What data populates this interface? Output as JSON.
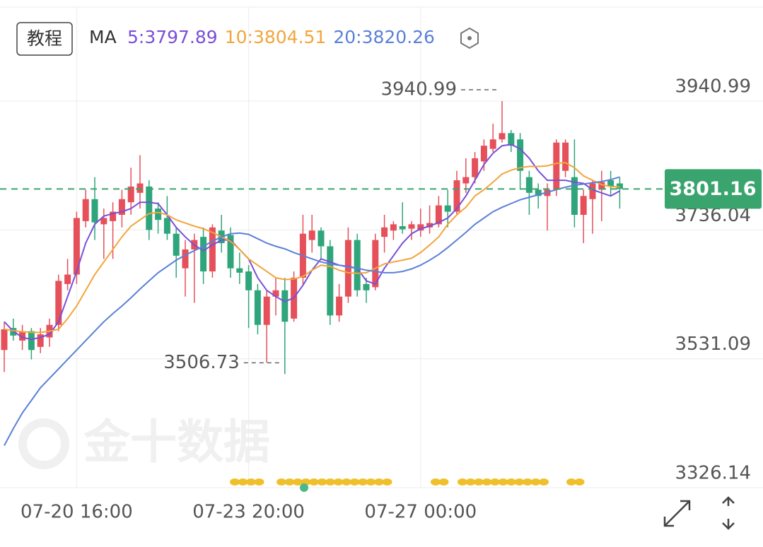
{
  "tutorial_button": "教程",
  "watermark": "金十数据",
  "chart_data": {
    "type": "candlestick",
    "ma_title": "MA",
    "categories": [
      null,
      null,
      null,
      null,
      null,
      null,
      null,
      null,
      "07-20 16:00",
      null,
      null,
      null,
      null,
      null,
      null,
      null,
      null,
      null,
      null,
      null,
      null,
      null,
      null,
      null,
      null,
      null,
      null,
      "07-23 20:00",
      null,
      null,
      null,
      null,
      null,
      null,
      null,
      null,
      null,
      null,
      null,
      null,
      null,
      null,
      null,
      null,
      null,
      null,
      "07-27 00:00",
      null,
      null,
      null,
      null,
      null,
      null,
      null,
      null,
      null,
      null,
      null,
      null,
      null,
      null,
      null,
      null,
      null,
      null,
      null,
      null,
      null,
      null
    ],
    "open": [
      3545,
      3580,
      3560,
      3575,
      3550,
      3565,
      3585,
      3650,
      3665,
      3750,
      3785,
      3745,
      3750,
      3760,
      3780,
      3795,
      3805,
      3770,
      3755,
      3730,
      3675,
      3705,
      3725,
      3670,
      3735,
      3728,
      3675,
      3670,
      3640,
      3585,
      3630,
      3640,
      3595,
      3660,
      3720,
      3735,
      3710,
      3600,
      3630,
      3720,
      3650,
      3645,
      3725,
      3735,
      3742,
      3738,
      3735,
      3740,
      3745,
      3775,
      3765,
      3810,
      3820,
      3845,
      3865,
      3880,
      3890,
      3880,
      3820,
      3800,
      3790,
      3800,
      3830,
      3820,
      3760,
      3785,
      3800,
      3815,
      3810
    ],
    "high": [
      3590,
      3595,
      3585,
      3580,
      3580,
      3595,
      3665,
      3690,
      3765,
      3800,
      3820,
      3770,
      3780,
      3800,
      3835,
      3855,
      3815,
      3780,
      3790,
      3740,
      3720,
      3730,
      3740,
      3745,
      3760,
      3740,
      3700,
      3680,
      3650,
      3640,
      3660,
      3660,
      3670,
      3760,
      3760,
      3740,
      3720,
      3650,
      3740,
      3730,
      3660,
      3730,
      3760,
      3750,
      3780,
      3750,
      3770,
      3775,
      3790,
      3800,
      3830,
      3850,
      3860,
      3880,
      3905,
      3940.99,
      3895,
      3890,
      3830,
      3810,
      3810,
      3880,
      3880,
      3880,
      3800,
      3815,
      3830,
      3830,
      3820
    ],
    "low": [
      3510,
      3560,
      3545,
      3530,
      3540,
      3550,
      3575,
      3640,
      3650,
      3740,
      3720,
      3690,
      3690,
      3740,
      3760,
      3770,
      3720,
      3730,
      3720,
      3660,
      3630,
      3620,
      3650,
      3660,
      3700,
      3660,
      3650,
      3580,
      3570,
      3525,
      3600,
      3506.73,
      3590,
      3650,
      3700,
      3690,
      3585,
      3590,
      3620,
      3630,
      3620,
      3640,
      3700,
      3720,
      3730,
      3720,
      3725,
      3730,
      3740,
      3740,
      3760,
      3795,
      3810,
      3830,
      3860,
      3875,
      3860,
      3800,
      3760,
      3770,
      3735,
      3790,
      3820,
      3740,
      3715,
      3730,
      3750,
      3790,
      3770
    ],
    "close": [
      3578,
      3568,
      3575,
      3545,
      3570,
      3585,
      3655,
      3665,
      3755,
      3785,
      3748,
      3755,
      3765,
      3785,
      3805,
      3810,
      3736,
      3752,
      3730,
      3695,
      3705,
      3720,
      3670,
      3740,
      3715,
      3675,
      3668,
      3640,
      3585,
      3630,
      3640,
      3590,
      3660,
      3730,
      3735,
      3710,
      3600,
      3630,
      3720,
      3640,
      3640,
      3720,
      3740,
      3745,
      3737,
      3745,
      3745,
      3747,
      3775,
      3765,
      3815,
      3820,
      3850,
      3870,
      3880,
      3890,
      3870,
      3830,
      3795,
      3790,
      3800,
      3875,
      3875,
      3760,
      3790,
      3810,
      3812,
      3805,
      3801.16
    ],
    "up_color": "#e5505a",
    "down_color": "#2fa57b",
    "series": [
      {
        "name": "5:3797.89",
        "color": "#7a4fd8",
        "values": [
          3590,
          3575,
          3565,
          3562,
          3565,
          3570,
          3590,
          3630,
          3670,
          3715,
          3745,
          3758,
          3762,
          3765,
          3770,
          3780,
          3780,
          3778,
          3760,
          3740,
          3725,
          3712,
          3703,
          3712,
          3720,
          3720,
          3705,
          3690,
          3660,
          3640,
          3630,
          3622,
          3628,
          3648,
          3672,
          3690,
          3685,
          3680,
          3678,
          3675,
          3655,
          3650,
          3675,
          3695,
          3715,
          3730,
          3738,
          3742,
          3748,
          3755,
          3770,
          3790,
          3815,
          3840,
          3858,
          3870,
          3872,
          3865,
          3850,
          3830,
          3815,
          3815,
          3815,
          3812,
          3810,
          3800,
          3795,
          3790,
          3797.89
        ]
      },
      {
        "name": "10:3804.51",
        "color": "#f2a53c",
        "values": [
          3578,
          3576,
          3574,
          3573,
          3573,
          3575,
          3578,
          3595,
          3615,
          3640,
          3665,
          3685,
          3705,
          3725,
          3742,
          3752,
          3762,
          3764,
          3760,
          3752,
          3747,
          3742,
          3738,
          3732,
          3725,
          3718,
          3705,
          3690,
          3680,
          3670,
          3660,
          3657,
          3658,
          3662,
          3672,
          3680,
          3678,
          3672,
          3668,
          3667,
          3668,
          3675,
          3682,
          3685,
          3688,
          3691,
          3700,
          3712,
          3725,
          3745,
          3760,
          3772,
          3790,
          3800,
          3812,
          3825,
          3831,
          3835,
          3837,
          3837,
          3838,
          3842,
          3843,
          3835,
          3822,
          3815,
          3808,
          3805,
          3804.51
        ]
      },
      {
        "name": "20:3820.26",
        "color": "#5b80d8",
        "values": [
          3393,
          3420,
          3445,
          3465,
          3485,
          3500,
          3515,
          3530,
          3545,
          3560,
          3575,
          3590,
          3603,
          3615,
          3628,
          3642,
          3655,
          3668,
          3678,
          3688,
          3696,
          3703,
          3710,
          3718,
          3725,
          3730,
          3731,
          3729,
          3722,
          3715,
          3710,
          3706,
          3700,
          3695,
          3690,
          3685,
          3682,
          3680,
          3677,
          3675,
          3672,
          3670,
          3668,
          3668,
          3670,
          3674,
          3680,
          3688,
          3697,
          3708,
          3720,
          3732,
          3745,
          3755,
          3765,
          3772,
          3778,
          3784,
          3788,
          3792,
          3796,
          3800,
          3804,
          3807,
          3809,
          3811,
          3813,
          3816,
          3820.26
        ]
      }
    ],
    "ylim": [
      3326.14,
      4090.48
    ],
    "yticks": [
      3326.14,
      3531.09,
      3736.04,
      3940.99
    ],
    "grid": true,
    "last_price_color": "#3aa46e"
  }
}
